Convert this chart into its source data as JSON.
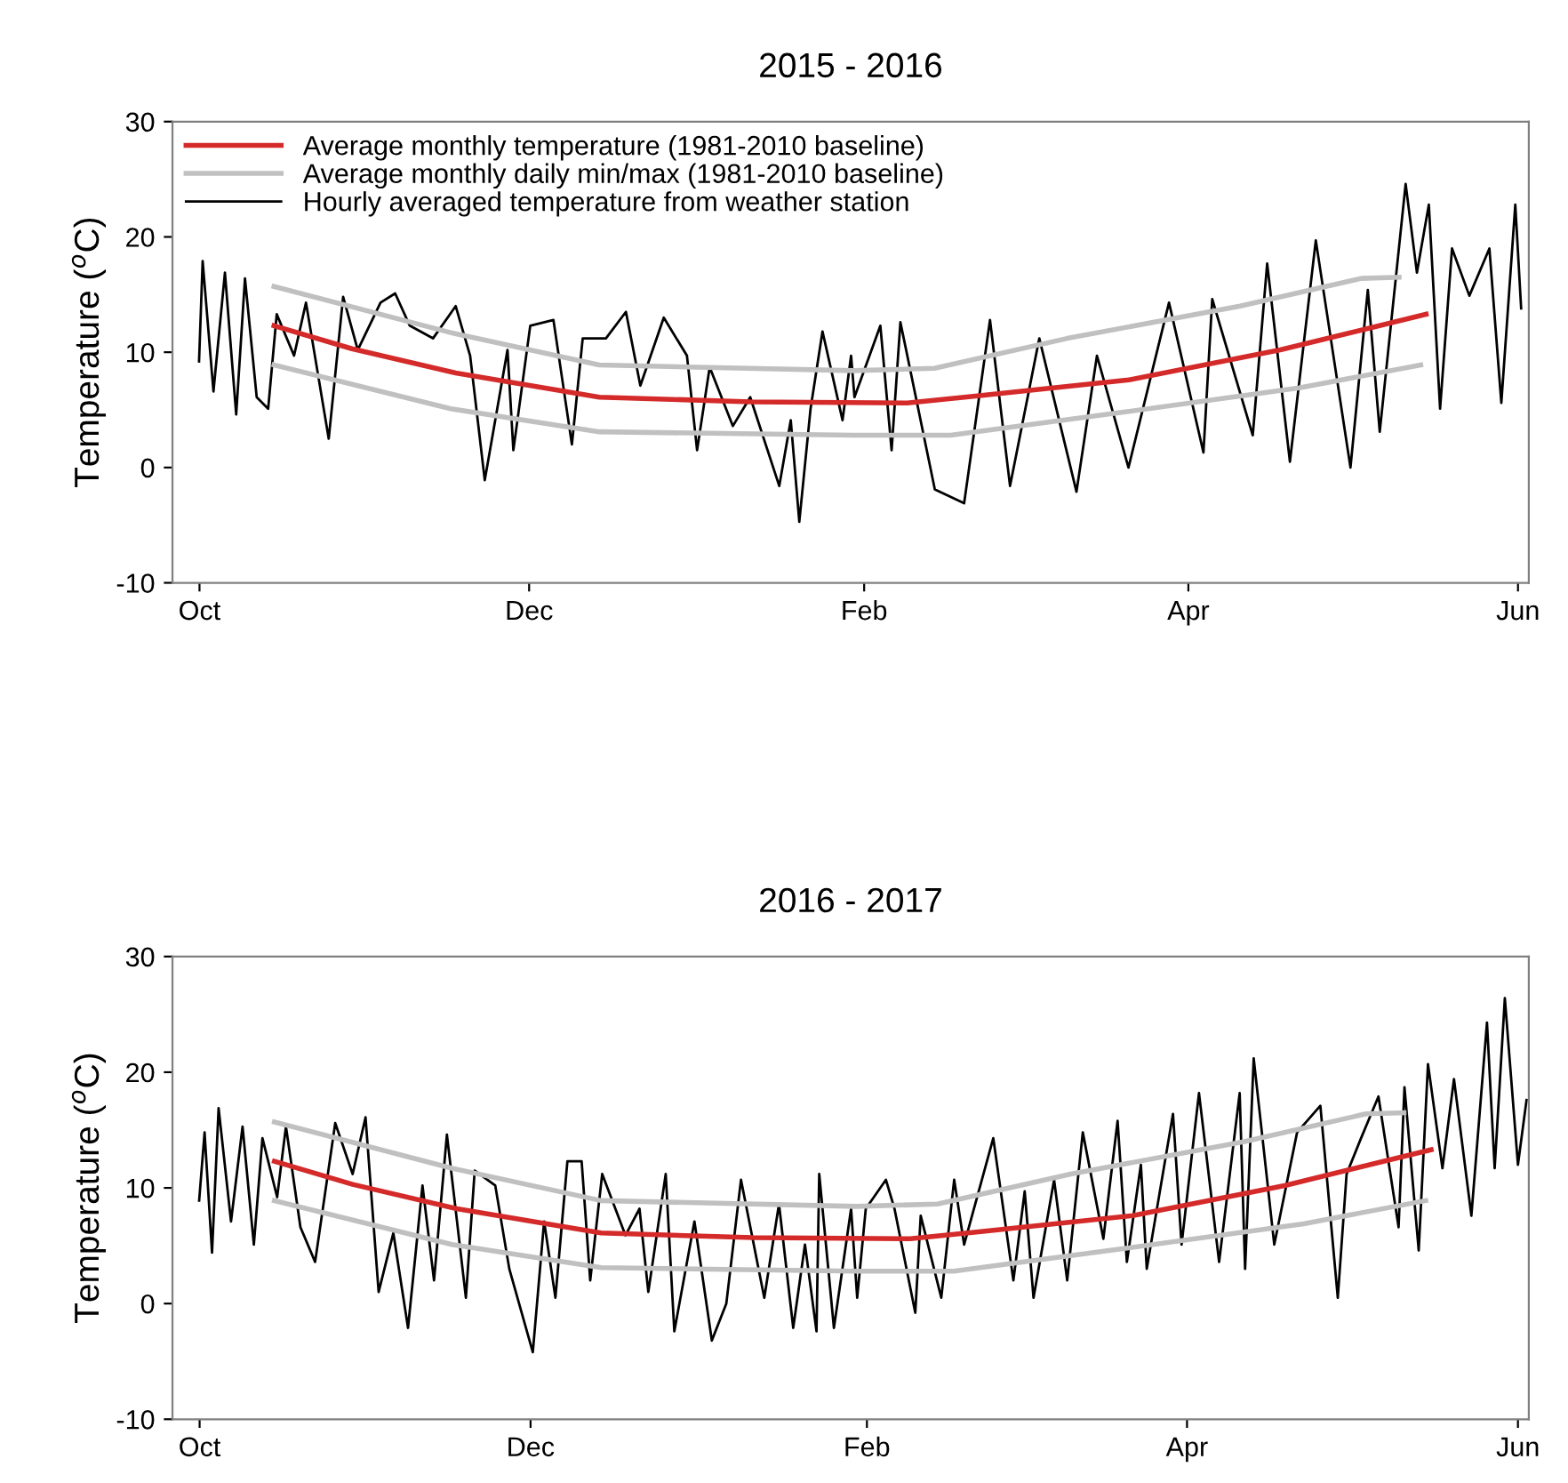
{
  "chart_data": [
    {
      "type": "line",
      "title": "2015 - 2016",
      "ylabel": "Temperature ($^{o}$C)",
      "xlim": [
        "2015-09-26",
        "2016-06-03"
      ],
      "ylim": [
        -10,
        30
      ],
      "yticks": [
        -10,
        0,
        10,
        20,
        30
      ],
      "xticks": [
        {
          "value": "2015-10-01",
          "label": "Oct"
        },
        {
          "value": "2015-12-01",
          "label": "Dec"
        },
        {
          "value": "2016-02-01",
          "label": "Feb"
        },
        {
          "value": "2016-04-01",
          "label": "Apr"
        },
        {
          "value": "2016-06-01",
          "label": "Jun"
        }
      ],
      "legend": "top left",
      "grid": false,
      "series": [
        {
          "name": "Average monthly temperature (1981-2010 baseline)",
          "color": "#d42a2a",
          "x": [
            "2015-10-14T19:00",
            "2015-10-29T05:00",
            "2015-11-17T10:00",
            "2015-12-14",
            "2016-01-11",
            "2016-02-09",
            "2016-02-21T14:00",
            "2016-03-21",
            "2016-04-18",
            "2016-05-15"
          ],
          "values": [
            12.3,
            10.3,
            8.2,
            6.1,
            5.7,
            5.6,
            6.2,
            7.6,
            10.2,
            13.3
          ]
        },
        {
          "name": "Average monthly daily min/max (1981-2010 baseline)",
          "color": "#c0c0c0",
          "x": [
            "2015-10-14T19:00",
            "2015-11-16T12:00",
            "2015-12-14",
            "2016-01-30",
            "2016-02-14",
            "2016-03-09T14:00",
            "2016-04-10T14:00",
            "2016-05-03",
            "2016-05-10"
          ],
          "values": [
            15.7,
            11.7,
            8.9,
            8.4,
            8.6,
            11.2,
            14.0,
            16.4,
            16.5
          ]
        },
        {
          "color": "#c0c0c0",
          "x": [
            "2015-10-14T19:00",
            "2015-11-16T12:00",
            "2015-12-14",
            "2016-01-30",
            "2016-02-17",
            "2016-03-20",
            "2016-04-21T12:00",
            "2016-05-14"
          ],
          "values": [
            8.9,
            5.1,
            3.1,
            2.8,
            2.8,
            4.8,
            6.9,
            8.9
          ]
        },
        {
          "name": "Hourly averaged temperature from weather station",
          "color": "#000000",
          "x": [
            "2015-09-30T22:00",
            "2015-10-01T14:00",
            "2015-10-03T14:00",
            "2015-10-05T17:00",
            "2015-10-07T19:00",
            "2015-10-09T10:00",
            "2015-10-11T14:00",
            "2015-10-13T17:00",
            "2015-10-15T07:00",
            "2015-10-18T12:00",
            "2015-10-20T17:00",
            "2015-10-24T22:00",
            "2015-10-27T14:00",
            "2015-10-30T07:00",
            "2015-11-03T12:00",
            "2015-11-06T05:00",
            "2015-11-08T22:00",
            "2015-11-13T05:00",
            "2015-11-17T10:00",
            "2015-11-20T02:00",
            "2015-11-22T19:00",
            "2015-11-27",
            "2015-11-28T02:00",
            "2015-12-01T05:00",
            "2015-12-05T12:00",
            "2015-12-08T22:00",
            "2015-12-10T22:00",
            "2015-12-15T05:00",
            "2015-12-18T22:00",
            "2015-12-21T14:00",
            "2015-12-25T22:00",
            "2015-12-30T05:00",
            "2016-01-01T02:00",
            "2016-01-03T10:00",
            "2016-01-07T17:00",
            "2016-01-10T22:00",
            "2016-01-16T07:00",
            "2016-01-18T10:00",
            "2016-01-20",
            "2016-01-22T02:00",
            "2016-01-24T07:00",
            "2016-01-28",
            "2016-01-29T14:00",
            "2016-01-30T05:00",
            "2016-02-04",
            "2016-02-06T02:00",
            "2016-02-07T17:00",
            "2016-02-14T02:00",
            "2016-02-19T12:00",
            "2016-02-24T07:00",
            "2016-02-28",
            "2016-03-04T10:00",
            "2016-03-11T07:00",
            "2016-03-15T02:00",
            "2016-03-20T22:00",
            "2016-03-28T10:00",
            "2016-04-03T19:00",
            "2016-04-05T10:00",
            "2016-04-12T22:00",
            "2016-04-15T14:00",
            "2016-04-19T19:00",
            "2016-04-24T14:00",
            "2016-05-01",
            "2016-05-04T05:00",
            "2016-05-06T10:00",
            "2016-05-11T05:00",
            "2016-05-13T07:00",
            "2016-05-15T12:00",
            "2016-05-17T14:00",
            "2016-05-19T19:00",
            "2016-05-23",
            "2016-05-26T17:00",
            "2016-05-28T22:00",
            "2016-05-31T12:00",
            "2016-06-01T14:00"
          ],
          "values": [
            9.2,
            17.9,
            6.6,
            16.9,
            4.6,
            16.4,
            6.1,
            5.1,
            13.3,
            9.7,
            14.3,
            2.5,
            14.8,
            10.2,
            14.3,
            15.1,
            12.3,
            11.2,
            14.0,
            9.7,
            -1.1,
            10.2,
            1.5,
            12.3,
            12.8,
            2.0,
            11.2,
            11.2,
            13.5,
            7.1,
            13.0,
            9.7,
            1.5,
            8.7,
            3.6,
            6.1,
            -1.6,
            4.1,
            -4.7,
            5.1,
            11.8,
            4.1,
            9.7,
            6.1,
            12.3,
            1.5,
            12.6,
            -1.9,
            -3.1,
            12.8,
            -1.6,
            11.2,
            -2.1,
            9.7,
            0.0,
            14.3,
            1.3,
            14.6,
            2.8,
            17.7,
            0.5,
            19.7,
            0.0,
            15.4,
            3.1,
            24.6,
            16.9,
            22.8,
            5.1,
            19.0,
            14.9,
            19.0,
            5.6,
            22.8,
            13.8
          ]
        }
      ]
    },
    {
      "type": "line",
      "title": "2016 - 2017",
      "ylabel": "Temperature ($^{o}$C)",
      "xlim": [
        "2016-09-26",
        "2017-06-03"
      ],
      "ylim": [
        -10,
        30
      ],
      "yticks": [
        -10,
        0,
        10,
        20,
        30
      ],
      "xticks": [
        {
          "value": "2016-10-01",
          "label": "Oct"
        },
        {
          "value": "2016-12-01",
          "label": "Dec"
        },
        {
          "value": "2017-02-01",
          "label": "Feb"
        },
        {
          "value": "2017-04-01",
          "label": "Apr"
        },
        {
          "value": "2017-06-01",
          "label": "Jun"
        }
      ],
      "grid": false,
      "series": [
        {
          "color": "#d42a2a",
          "x": [
            "2016-10-14T19:00",
            "2016-10-29T05:00",
            "2016-11-17T10:00",
            "2016-12-14",
            "2017-01-11",
            "2017-02-09",
            "2017-02-21T14:00",
            "2017-03-22",
            "2017-04-19",
            "2017-05-16"
          ],
          "values": [
            12.3,
            10.3,
            8.2,
            6.1,
            5.7,
            5.6,
            6.2,
            7.6,
            10.2,
            13.3
          ]
        },
        {
          "color": "#c0c0c0",
          "x": [
            "2016-10-14T19:00",
            "2016-11-16T12:00",
            "2016-12-14",
            "2017-01-30",
            "2017-02-14",
            "2017-03-10T14:00",
            "2017-04-11T14:00",
            "2017-05-04",
            "2017-05-11"
          ],
          "values": [
            15.7,
            11.7,
            8.9,
            8.4,
            8.6,
            11.2,
            14.0,
            16.4,
            16.5
          ]
        },
        {
          "color": "#c0c0c0",
          "x": [
            "2016-10-14T19:00",
            "2016-11-16T12:00",
            "2016-12-14",
            "2017-01-30",
            "2017-02-17",
            "2017-03-21",
            "2017-04-22T12:00",
            "2017-05-15"
          ],
          "values": [
            8.9,
            5.1,
            3.1,
            2.8,
            2.8,
            4.8,
            6.9,
            8.9
          ]
        },
        {
          "color": "#000000",
          "x": [
            "2016-09-30T22:00",
            "2016-10-01T22:00",
            "2016-10-03T07:00",
            "2016-10-04T12:00",
            "2016-10-06T19:00",
            "2016-10-08T22:00",
            "2016-10-11",
            "2016-10-12T14:00",
            "2016-10-15T07:00",
            "2016-10-16T22:00",
            "2016-10-19T14:00",
            "2016-10-22T07:00",
            "2016-10-26",
            "2016-10-29T05:00",
            "2016-10-31T14:00",
            "2016-11-03",
            "2016-11-05T17:00",
            "2016-11-08T10:00",
            "2016-11-11T02:00",
            "2016-11-13T05:00",
            "2016-11-15T14:00",
            "2016-11-19T02:00",
            "2016-11-20T17:00",
            "2016-11-24T12:00",
            "2016-11-27T02:00",
            "2016-12-01T10:00",
            "2016-12-03T12:00",
            "2016-12-05T14:00",
            "2016-12-07T19:00",
            "2016-12-10T10:00",
            "2016-12-12",
            "2016-12-14T05:00",
            "2016-12-18T12:00",
            "2016-12-21T02:00",
            "2016-12-22T17:00",
            "2016-12-25T22:00",
            "2016-12-27T12:00",
            "2016-12-31T05:00",
            "2017-01-03T10:00",
            "2017-01-06T02:00",
            "2017-01-08T19:00",
            "2017-01-13T02:00",
            "2017-01-15T19:00",
            "2017-01-18T10:00",
            "2017-01-20T14:00",
            "2017-01-22T17:00",
            "2017-01-23T05:00",
            "2017-01-25T22:00",
            "2017-01-29T02:00",
            "2017-01-30T05:00",
            "2017-01-31T19:00",
            "2017-02-04T12:00",
            "2017-02-06T02:00",
            "2017-02-09T22:00",
            "2017-02-10T22:00",
            "2017-02-14T17:00",
            "2017-02-17T02:00",
            "2017-02-18T22:00",
            "2017-02-24T07:00",
            "2017-02-28",
            "2017-03-02T02:00",
            "2017-03-03T17:00",
            "2017-03-07T12:00",
            "2017-03-09T22:00",
            "2017-03-12T19:00",
            "2017-03-16T14:00",
            "2017-03-19T05:00",
            "2017-03-20T22:00",
            "2017-03-23T12:00",
            "2017-03-24T14:00",
            "2017-03-29T10:00",
            "2017-03-31",
            "2017-04-03T05:00",
            "2017-04-06T22:00",
            "2017-04-10T17:00",
            "2017-04-11T17:00",
            "2017-04-13T07:00",
            "2017-04-17T02:00",
            "2017-04-21T07:00",
            "2017-04-25T14:00",
            "2017-04-28T19:00",
            "2017-04-30T10:00",
            "2017-05-03T02:00",
            "2017-05-06T07:00",
            "2017-05-10",
            "2017-05-11T02:00",
            "2017-05-13T17:00",
            "2017-05-15T10:00",
            "2017-05-18T02:00",
            "2017-05-20T05:00",
            "2017-05-23T10:00",
            "2017-05-26T07:00",
            "2017-05-27T17:00",
            "2017-05-29T14:00",
            "2017-06-01",
            "2017-06-02T14:00"
          ],
          "values": [
            8.9,
            14.8,
            4.4,
            16.9,
            7.1,
            15.3,
            5.1,
            14.3,
            9.2,
            15.3,
            6.6,
            3.6,
            15.6,
            11.2,
            16.1,
            1.0,
            6.1,
            -2.1,
            10.2,
            2.0,
            14.6,
            0.5,
            11.5,
            10.2,
            3.0,
            -4.2,
            7.1,
            0.5,
            12.3,
            12.3,
            2.0,
            11.2,
            5.9,
            8.2,
            1.0,
            11.2,
            -2.4,
            7.1,
            -3.2,
            0.0,
            10.7,
            0.5,
            8.6,
            -2.1,
            5.1,
            -2.4,
            11.2,
            -2.1,
            8.2,
            0.5,
            8.2,
            10.7,
            8.2,
            -0.8,
            7.6,
            0.5,
            10.7,
            5.1,
            14.3,
            2.0,
            9.7,
            0.5,
            10.7,
            2.0,
            14.8,
            5.6,
            15.8,
            3.6,
            12.0,
            3.0,
            16.4,
            5.1,
            18.2,
            3.6,
            18.2,
            3.0,
            21.2,
            5.1,
            14.8,
            17.1,
            0.5,
            11.2,
            14.3,
            17.9,
            6.6,
            18.7,
            4.6,
            20.7,
            11.7,
            19.4,
            7.6,
            24.3,
            11.7,
            26.4,
            12.0,
            17.6
          ]
        }
      ]
    }
  ]
}
